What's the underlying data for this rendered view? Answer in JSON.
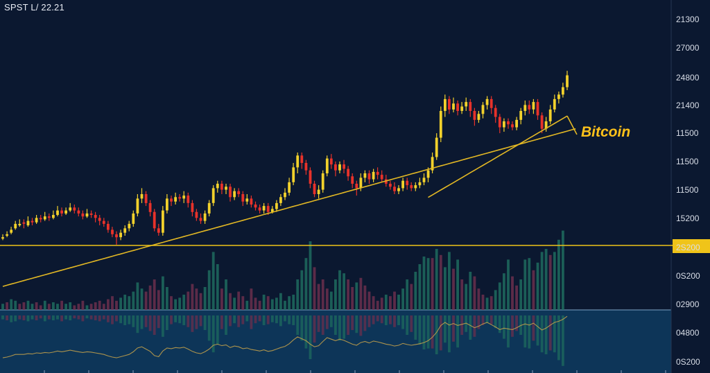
{
  "title": "SPST L/ 22.21",
  "colors": {
    "background": "#0b1830",
    "lower_panel": "#0d3558",
    "up": "#f2d12c",
    "down": "#e8322a",
    "ma": "#e3b824",
    "ref_line": "#f0c419",
    "vol_up": "#1e6b5e",
    "vol_down": "#6b2f4c",
    "axis_text": "#d9dee8"
  },
  "chart_data": {
    "type": "candlestick",
    "series_label": "Bitcoin",
    "y_axis": {
      "position": "right",
      "tick_labels": [
        "21300",
        "27000",
        "24800",
        "21400",
        "11500",
        "11500",
        "11500",
        "15200",
        "2S200",
        "0S200",
        "02900",
        "04800",
        "0S200"
      ]
    },
    "highlighted_level": "2S200",
    "ranges": {
      "price": [
        0,
        100
      ],
      "volume": [
        0,
        100
      ]
    },
    "candles": [
      [
        26,
        27,
        29,
        25
      ],
      [
        28,
        29,
        31,
        27
      ],
      [
        30,
        32,
        34,
        29
      ],
      [
        33,
        36,
        38,
        32
      ],
      [
        35,
        36,
        39,
        34
      ],
      [
        37,
        36,
        39,
        33
      ],
      [
        35,
        38,
        41,
        34
      ],
      [
        38,
        37,
        40,
        35
      ],
      [
        37,
        40,
        42,
        36
      ],
      [
        40,
        39,
        42,
        37
      ],
      [
        39,
        41,
        44,
        38
      ],
      [
        41,
        40,
        43,
        38
      ],
      [
        40,
        42,
        45,
        39
      ],
      [
        42,
        45,
        48,
        41
      ],
      [
        45,
        43,
        47,
        41
      ],
      [
        43,
        45,
        47,
        42
      ],
      [
        45,
        47,
        50,
        44
      ],
      [
        47,
        45,
        49,
        43
      ],
      [
        45,
        43,
        47,
        41
      ],
      [
        43,
        41,
        45,
        39
      ],
      [
        41,
        43,
        46,
        40
      ],
      [
        43,
        42,
        45,
        40
      ],
      [
        42,
        40,
        44,
        37
      ],
      [
        40,
        38,
        42,
        35
      ],
      [
        38,
        36,
        40,
        34
      ],
      [
        36,
        32,
        38,
        30
      ],
      [
        32,
        29,
        34,
        27
      ],
      [
        29,
        27,
        31,
        22
      ],
      [
        27,
        30,
        32,
        25
      ],
      [
        30,
        33,
        35,
        28
      ],
      [
        33,
        36,
        38,
        31
      ],
      [
        36,
        43,
        45,
        34
      ],
      [
        43,
        53,
        56,
        41
      ],
      [
        53,
        56,
        60,
        50
      ],
      [
        56,
        50,
        58,
        48
      ],
      [
        50,
        44,
        52,
        41
      ],
      [
        44,
        33,
        46,
        31
      ],
      [
        33,
        30,
        36,
        28
      ],
      [
        30,
        45,
        48,
        28
      ],
      [
        45,
        53,
        56,
        43
      ],
      [
        53,
        51,
        55,
        48
      ],
      [
        51,
        54,
        57,
        49
      ],
      [
        54,
        53,
        56,
        51
      ],
      [
        53,
        55,
        58,
        50
      ],
      [
        55,
        50,
        57,
        47
      ],
      [
        50,
        44,
        52,
        41
      ],
      [
        44,
        40,
        46,
        38
      ],
      [
        40,
        38,
        43,
        36
      ],
      [
        38,
        43,
        45,
        36
      ],
      [
        43,
        50,
        52,
        41
      ],
      [
        50,
        60,
        62,
        48
      ],
      [
        60,
        63,
        65,
        57
      ],
      [
        63,
        59,
        65,
        56
      ],
      [
        59,
        61,
        63,
        56
      ],
      [
        61,
        54,
        63,
        51
      ],
      [
        54,
        58,
        60,
        52
      ],
      [
        58,
        56,
        60,
        54
      ],
      [
        56,
        51,
        58,
        48
      ],
      [
        51,
        53,
        56,
        49
      ],
      [
        53,
        49,
        55,
        47
      ],
      [
        49,
        47,
        51,
        45
      ],
      [
        47,
        45,
        49,
        43
      ],
      [
        45,
        48,
        50,
        43
      ],
      [
        48,
        44,
        50,
        42
      ],
      [
        44,
        46,
        48,
        43
      ],
      [
        46,
        50,
        52,
        44
      ],
      [
        50,
        54,
        56,
        48
      ],
      [
        54,
        57,
        60,
        52
      ],
      [
        57,
        64,
        67,
        55
      ],
      [
        64,
        74,
        77,
        62
      ],
      [
        74,
        82,
        84,
        70
      ],
      [
        82,
        77,
        84,
        73
      ],
      [
        77,
        72,
        79,
        69
      ],
      [
        72,
        63,
        74,
        60
      ],
      [
        63,
        56,
        65,
        54
      ],
      [
        56,
        59,
        62,
        53
      ],
      [
        59,
        70,
        72,
        57
      ],
      [
        70,
        80,
        82,
        68
      ],
      [
        80,
        76,
        83,
        73
      ],
      [
        76,
        72,
        78,
        68
      ],
      [
        72,
        76,
        78,
        70
      ],
      [
        76,
        73,
        79,
        70
      ],
      [
        73,
        68,
        75,
        65
      ],
      [
        68,
        63,
        70,
        60
      ],
      [
        63,
        60,
        65,
        55
      ],
      [
        60,
        67,
        70,
        58
      ],
      [
        67,
        70,
        72,
        64
      ],
      [
        70,
        66,
        72,
        63
      ],
      [
        66,
        71,
        73,
        64
      ],
      [
        71,
        69,
        74,
        66
      ],
      [
        69,
        66,
        72,
        64
      ],
      [
        66,
        63,
        69,
        61
      ],
      [
        63,
        61,
        65,
        59
      ],
      [
        61,
        58,
        64,
        56
      ],
      [
        58,
        60,
        62,
        56
      ],
      [
        60,
        65,
        67,
        58
      ],
      [
        65,
        62,
        67,
        59
      ],
      [
        62,
        60,
        64,
        58
      ],
      [
        60,
        62,
        64,
        58
      ],
      [
        62,
        64,
        67,
        60
      ],
      [
        64,
        67,
        70,
        62
      ],
      [
        67,
        72,
        74,
        64
      ],
      [
        72,
        81,
        84,
        70
      ],
      [
        81,
        94,
        97,
        79
      ],
      [
        94,
        112,
        115,
        91
      ],
      [
        112,
        120,
        123,
        108
      ],
      [
        120,
        113,
        122,
        110
      ],
      [
        113,
        117,
        121,
        111
      ],
      [
        117,
        112,
        119,
        109
      ],
      [
        112,
        115,
        118,
        110
      ],
      [
        115,
        118,
        121,
        112
      ],
      [
        118,
        112,
        120,
        108
      ],
      [
        112,
        106,
        114,
        102
      ],
      [
        106,
        110,
        112,
        104
      ],
      [
        110,
        116,
        118,
        107
      ],
      [
        116,
        120,
        122,
        113
      ],
      [
        120,
        114,
        122,
        110
      ],
      [
        114,
        108,
        116,
        104
      ],
      [
        108,
        101,
        110,
        97
      ],
      [
        101,
        105,
        107,
        98
      ],
      [
        105,
        103,
        107,
        100
      ],
      [
        103,
        101,
        105,
        99
      ],
      [
        101,
        106,
        108,
        99
      ],
      [
        106,
        112,
        114,
        103
      ],
      [
        112,
        116,
        119,
        109
      ],
      [
        116,
        113,
        119,
        110
      ],
      [
        113,
        118,
        120,
        110
      ],
      [
        118,
        109,
        120,
        106
      ],
      [
        109,
        100,
        111,
        97
      ],
      [
        100,
        105,
        108,
        98
      ],
      [
        105,
        113,
        116,
        103
      ],
      [
        113,
        120,
        123,
        111
      ],
      [
        120,
        123,
        125,
        117
      ],
      [
        123,
        128,
        131,
        121
      ],
      [
        128,
        136,
        139,
        126
      ]
    ],
    "moving_average_long": [
      5,
      6,
      7,
      8,
      9,
      10,
      11,
      12,
      13,
      14,
      15,
      16,
      17,
      18,
      19,
      20,
      21,
      22,
      23,
      24,
      25,
      26,
      27,
      28,
      29,
      30,
      31,
      32,
      33,
      34,
      35,
      36,
      37,
      38,
      39,
      40,
      41,
      42,
      43,
      44,
      45,
      46,
      47,
      48,
      49,
      50,
      51,
      52,
      53,
      54,
      55,
      56,
      57,
      58,
      59,
      60,
      61,
      62,
      63,
      64,
      65,
      66,
      67,
      68,
      69,
      70,
      71,
      72,
      73,
      74,
      75,
      76,
      77,
      78,
      79,
      80,
      81,
      82,
      83,
      84,
      85,
      86,
      87,
      88,
      89,
      90,
      91,
      92,
      93,
      94,
      95,
      96,
      97,
      98,
      99,
      100,
      101,
      102,
      103,
      104,
      105,
      106,
      107,
      108,
      109,
      110,
      111,
      112,
      113,
      114,
      115,
      116,
      117,
      118,
      119,
      120,
      121,
      122,
      123,
      124,
      125,
      126,
      127,
      128,
      129,
      130,
      131,
      132,
      133,
      134,
      135,
      136,
      137,
      138,
      139,
      140,
      141
    ],
    "moving_average_short": [
      60,
      62,
      64,
      66,
      68,
      70,
      72,
      74,
      76,
      78,
      80,
      82,
      84,
      86,
      88,
      90,
      92,
      94,
      96,
      98,
      100,
      102,
      104,
      106,
      108,
      110,
      112,
      114,
      116,
      118,
      120,
      122,
      124,
      126
    ],
    "volume": [
      [
        4,
        "up"
      ],
      [
        5,
        "down"
      ],
      [
        7,
        "up"
      ],
      [
        6,
        "up"
      ],
      [
        4,
        "down"
      ],
      [
        5,
        "down"
      ],
      [
        6,
        "up"
      ],
      [
        4,
        "up"
      ],
      [
        5,
        "down"
      ],
      [
        3,
        "down"
      ],
      [
        6,
        "up"
      ],
      [
        4,
        "down"
      ],
      [
        5,
        "up"
      ],
      [
        4,
        "up"
      ],
      [
        6,
        "down"
      ],
      [
        4,
        "up"
      ],
      [
        5,
        "up"
      ],
      [
        3,
        "down"
      ],
      [
        4,
        "down"
      ],
      [
        6,
        "down"
      ],
      [
        3,
        "up"
      ],
      [
        4,
        "down"
      ],
      [
        5,
        "down"
      ],
      [
        6,
        "down"
      ],
      [
        4,
        "down"
      ],
      [
        7,
        "down"
      ],
      [
        9,
        "down"
      ],
      [
        6,
        "down"
      ],
      [
        8,
        "up"
      ],
      [
        10,
        "up"
      ],
      [
        9,
        "up"
      ],
      [
        12,
        "up"
      ],
      [
        18,
        "up"
      ],
      [
        14,
        "up"
      ],
      [
        12,
        "down"
      ],
      [
        16,
        "down"
      ],
      [
        20,
        "down"
      ],
      [
        13,
        "down"
      ],
      [
        22,
        "up"
      ],
      [
        15,
        "up"
      ],
      [
        9,
        "down"
      ],
      [
        7,
        "up"
      ],
      [
        8,
        "up"
      ],
      [
        10,
        "up"
      ],
      [
        12,
        "down"
      ],
      [
        17,
        "down"
      ],
      [
        14,
        "down"
      ],
      [
        11,
        "down"
      ],
      [
        15,
        "up"
      ],
      [
        26,
        "up"
      ],
      [
        38,
        "up"
      ],
      [
        30,
        "up"
      ],
      [
        14,
        "down"
      ],
      [
        20,
        "up"
      ],
      [
        11,
        "down"
      ],
      [
        8,
        "up"
      ],
      [
        12,
        "down"
      ],
      [
        9,
        "down"
      ],
      [
        6,
        "up"
      ],
      [
        14,
        "down"
      ],
      [
        8,
        "down"
      ],
      [
        6,
        "down"
      ],
      [
        10,
        "up"
      ],
      [
        9,
        "down"
      ],
      [
        7,
        "up"
      ],
      [
        8,
        "up"
      ],
      [
        11,
        "up"
      ],
      [
        6,
        "up"
      ],
      [
        9,
        "up"
      ],
      [
        10,
        "up"
      ],
      [
        20,
        "up"
      ],
      [
        26,
        "up"
      ],
      [
        34,
        "up"
      ],
      [
        45,
        "up"
      ],
      [
        28,
        "down"
      ],
      [
        17,
        "down"
      ],
      [
        20,
        "down"
      ],
      [
        14,
        "down"
      ],
      [
        12,
        "up"
      ],
      [
        20,
        "up"
      ],
      [
        26,
        "up"
      ],
      [
        24,
        "up"
      ],
      [
        20,
        "down"
      ],
      [
        15,
        "down"
      ],
      [
        18,
        "up"
      ],
      [
        21,
        "down"
      ],
      [
        16,
        "down"
      ],
      [
        12,
        "down"
      ],
      [
        9,
        "down"
      ],
      [
        6,
        "down"
      ],
      [
        8,
        "down"
      ],
      [
        10,
        "up"
      ],
      [
        9,
        "down"
      ],
      [
        12,
        "down"
      ],
      [
        10,
        "up"
      ],
      [
        14,
        "up"
      ],
      [
        20,
        "up"
      ],
      [
        17,
        "down"
      ],
      [
        25,
        "up"
      ],
      [
        30,
        "up"
      ],
      [
        35,
        "up"
      ],
      [
        34,
        "up"
      ],
      [
        34,
        "down"
      ],
      [
        40,
        "up"
      ],
      [
        36,
        "down"
      ],
      [
        28,
        "up"
      ],
      [
        38,
        "up"
      ],
      [
        27,
        "down"
      ],
      [
        33,
        "up"
      ],
      [
        20,
        "down"
      ],
      [
        17,
        "up"
      ],
      [
        25,
        "up"
      ],
      [
        22,
        "down"
      ],
      [
        14,
        "down"
      ],
      [
        10,
        "down"
      ],
      [
        8,
        "up"
      ],
      [
        9,
        "down"
      ],
      [
        13,
        "up"
      ],
      [
        18,
        "up"
      ],
      [
        24,
        "up"
      ],
      [
        33,
        "up"
      ],
      [
        22,
        "down"
      ],
      [
        16,
        "down"
      ],
      [
        20,
        "up"
      ],
      [
        33,
        "up"
      ],
      [
        34,
        "up"
      ],
      [
        26,
        "down"
      ],
      [
        31,
        "up"
      ],
      [
        38,
        "up"
      ],
      [
        40,
        "up"
      ],
      [
        36,
        "down"
      ],
      [
        38,
        "up"
      ],
      [
        46,
        "up"
      ],
      [
        52,
        "up"
      ]
    ]
  }
}
